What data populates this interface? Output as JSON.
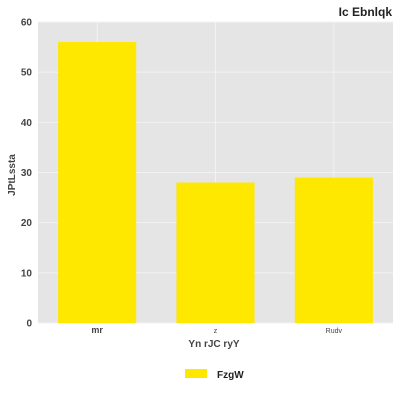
{
  "chart_data": {
    "type": "bar",
    "title": "Ic Ebnlqk",
    "xlabel": "Yn rJC ryY",
    "ylabel": "JPtLssta",
    "categories": [
      "mr",
      "z",
      "Rudv"
    ],
    "series": [
      {
        "name": "FzgW",
        "values": [
          56,
          28,
          29
        ]
      }
    ],
    "ylim": [
      0,
      60
    ],
    "yticks": [
      0,
      10,
      20,
      30,
      40,
      50,
      60
    ],
    "grid": true,
    "legend_position": "bottom",
    "colors": {
      "bar": "#FFE800",
      "plot_bg": "#E5E5E5",
      "grid": "#F2F2F2"
    }
  }
}
